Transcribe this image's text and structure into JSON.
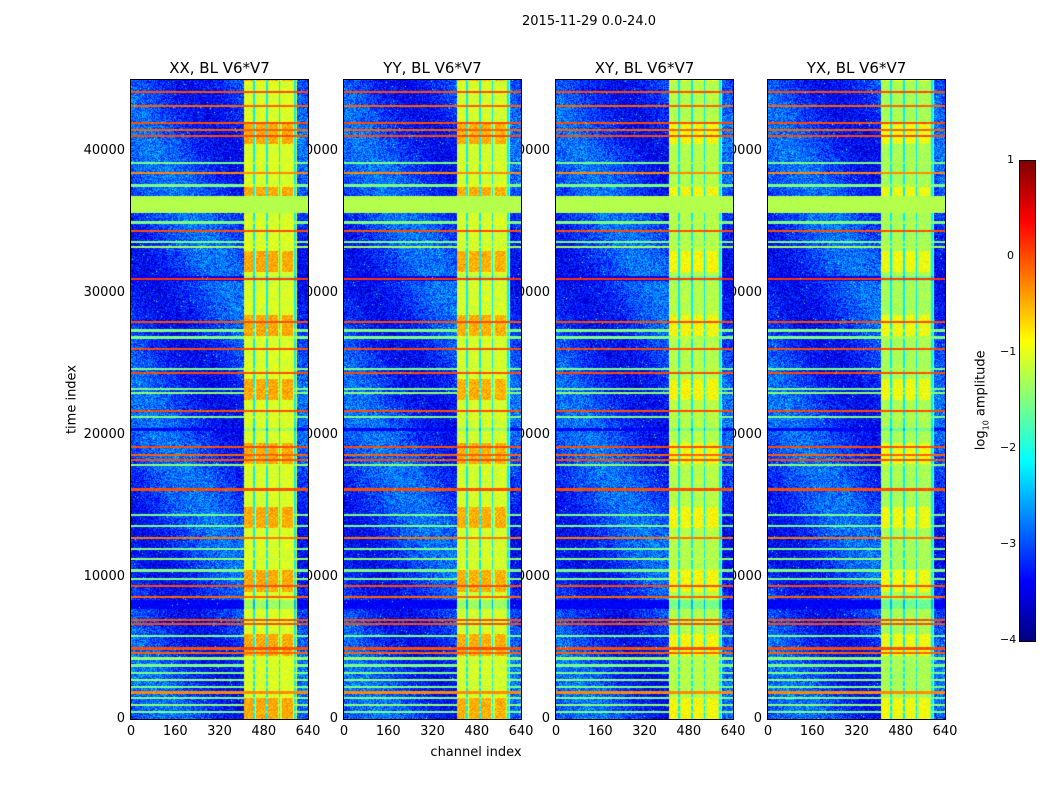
{
  "figure": {
    "suptitle": "2015-11-29 0.0-24.0",
    "xlabel": "channel index",
    "ylabel": "time index"
  },
  "panels": [
    {
      "title": "XX, BL V6*V7",
      "offset": 0
    },
    {
      "title": "YY, BL V6*V7",
      "offset": -0.05
    },
    {
      "title": "XY, BL V6*V7",
      "offset": -0.3
    },
    {
      "title": "YX, BL V6*V7",
      "offset": -0.4
    }
  ],
  "xticks": [
    "0",
    "160",
    "320",
    "480",
    "640"
  ],
  "yticks": [
    "0",
    "10000",
    "20000",
    "30000",
    "40000"
  ],
  "colorbar": {
    "label_main": "log",
    "label_sub": "10",
    "label_rest": " amplitude",
    "ticks": [
      "1",
      "0",
      "−1",
      "−2",
      "−3",
      "−4"
    ]
  },
  "chart_data": {
    "type": "heatmap",
    "title": "2015-11-29 0.0-24.0",
    "xlabel": "channel index",
    "ylabel": "time index",
    "xlim": [
      0,
      640
    ],
    "ylim": [
      0,
      45000
    ],
    "colormap": "jet",
    "clim": [
      -4,
      1
    ],
    "colorbar_label": "log10 amplitude",
    "background_level": -3.1,
    "bright_channel_range": [
      405,
      600
    ],
    "bright_level": -1.1,
    "bright_subcolumns": [
      [
        405,
        440
      ],
      [
        450,
        488
      ],
      [
        495,
        530
      ],
      [
        545,
        585
      ]
    ],
    "dark_channel_gaps": [
      442,
      490,
      535,
      590
    ],
    "flagged_time_band": {
      "range": [
        35700,
        36900
      ],
      "level": -1.25
    },
    "blue_time_bands": [
      [
        7800,
        8400
      ],
      [
        20300,
        20500
      ],
      [
        30900,
        31200
      ]
    ],
    "rfi_rows": [
      {
        "t": 44200,
        "level": 0
      },
      {
        "t": 43200,
        "level": -0.1
      },
      {
        "t": 42000,
        "level": 0
      },
      {
        "t": 41500,
        "level": -0.1
      },
      {
        "t": 41100,
        "level": 0
      },
      {
        "t": 39200,
        "level": -1.5
      },
      {
        "t": 38500,
        "level": -0.3
      },
      {
        "t": 37600,
        "level": -1.5
      },
      {
        "t": 35000,
        "level": -1.5
      },
      {
        "t": 34400,
        "level": 0
      },
      {
        "t": 33600,
        "level": -1.5
      },
      {
        "t": 33300,
        "level": -1.3
      },
      {
        "t": 31000,
        "level": 0.1
      },
      {
        "t": 28000,
        "level": 0
      },
      {
        "t": 27400,
        "level": -1.5
      },
      {
        "t": 26900,
        "level": -1.5
      },
      {
        "t": 26100,
        "level": 0
      },
      {
        "t": 24700,
        "level": -1.5
      },
      {
        "t": 24400,
        "level": 0
      },
      {
        "t": 23300,
        "level": -1.5
      },
      {
        "t": 23000,
        "level": -1.4
      },
      {
        "t": 21700,
        "level": 0
      },
      {
        "t": 21300,
        "level": -1.5
      },
      {
        "t": 19200,
        "level": 0
      },
      {
        "t": 18600,
        "level": -0.1
      },
      {
        "t": 18300,
        "level": 0
      },
      {
        "t": 17900,
        "level": -1.4
      },
      {
        "t": 16200,
        "level": 0
      },
      {
        "t": 14400,
        "level": -1.5
      },
      {
        "t": 13600,
        "level": -1.5
      },
      {
        "t": 12800,
        "level": -0.2
      },
      {
        "t": 12000,
        "level": -1.5
      },
      {
        "t": 11300,
        "level": -1.4
      },
      {
        "t": 10500,
        "level": -1.5
      },
      {
        "t": 9900,
        "level": -1.5
      },
      {
        "t": 9400,
        "level": 0
      },
      {
        "t": 8600,
        "level": -0.1
      },
      {
        "t": 7000,
        "level": 0
      },
      {
        "t": 6700,
        "level": 0
      },
      {
        "t": 5900,
        "level": -1.5
      },
      {
        "t": 5000,
        "level": 0
      },
      {
        "t": 4700,
        "level": -0.1
      },
      {
        "t": 4300,
        "level": -1.4
      },
      {
        "t": 3800,
        "level": -1.5
      },
      {
        "t": 3300,
        "level": -1.5
      },
      {
        "t": 2800,
        "level": -1.4
      },
      {
        "t": 2300,
        "level": -1.5
      },
      {
        "t": 1900,
        "level": -0.3
      },
      {
        "t": 1500,
        "level": -1.5
      },
      {
        "t": 1000,
        "level": -1.4
      },
      {
        "t": 500,
        "level": -1.5
      }
    ]
  }
}
